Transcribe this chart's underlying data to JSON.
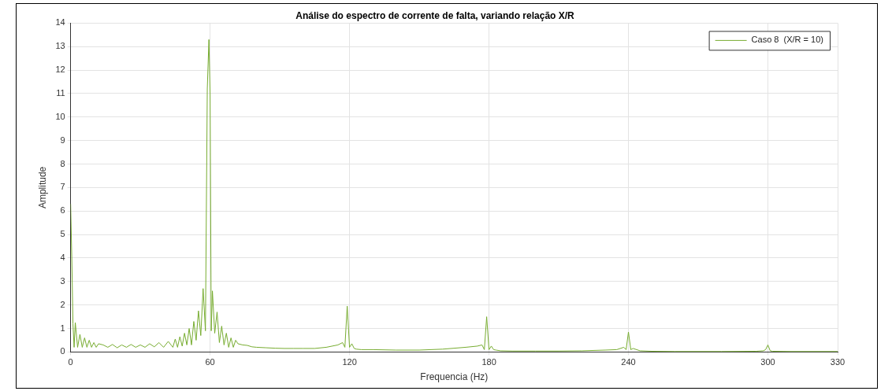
{
  "chart_data": {
    "type": "line",
    "title": "Análise do espectro de corrente de falta, variando relação X/R",
    "xlabel": "Frequencia (Hz)",
    "ylabel": "Amplitude",
    "xlim": [
      0,
      330
    ],
    "xticks": [
      0,
      60,
      120,
      180,
      240,
      300,
      330
    ],
    "ylim": [
      0,
      14
    ],
    "yticks": [
      0,
      1,
      2,
      3,
      4,
      5,
      6,
      7,
      8,
      9,
      10,
      11,
      12,
      13,
      14
    ],
    "grid": true,
    "legend": "top right",
    "marker": "none",
    "line_style": "solid",
    "series": [
      {
        "name": "Caso 8  (X/R = 10)",
        "color": "#77ac30",
        "x": [
          0,
          0.5,
          1,
          1.5,
          2,
          3,
          4,
          5,
          6,
          7,
          8,
          9,
          10,
          11,
          12,
          14,
          16,
          18,
          20,
          22,
          24,
          26,
          28,
          30,
          32,
          34,
          36,
          38,
          40,
          42,
          44,
          45,
          46,
          47,
          48,
          49,
          50,
          51,
          52,
          53,
          54,
          55,
          56,
          57,
          58,
          58.8,
          59.5,
          60,
          60.5,
          61,
          62,
          63,
          64,
          65,
          66,
          67,
          68,
          69,
          70,
          71,
          72,
          74,
          76,
          78,
          80,
          84,
          88,
          92,
          96,
          100,
          105,
          110,
          115,
          117,
          118,
          119,
          120,
          121,
          122,
          123,
          125,
          130,
          140,
          150,
          160,
          170,
          175,
          177,
          178,
          179,
          180,
          181,
          182,
          183,
          185,
          190,
          200,
          210,
          220,
          230,
          235,
          238,
          239,
          240,
          241,
          242,
          245,
          250,
          260,
          280,
          295,
          298,
          299,
          300,
          301,
          302,
          310,
          330
        ],
        "values": [
          6.3,
          4,
          1.2,
          0.2,
          1.25,
          0.2,
          0.75,
          0.2,
          0.6,
          0.2,
          0.5,
          0.2,
          0.4,
          0.2,
          0.35,
          0.3,
          0.2,
          0.32,
          0.18,
          0.3,
          0.2,
          0.32,
          0.2,
          0.3,
          0.2,
          0.35,
          0.22,
          0.4,
          0.2,
          0.45,
          0.2,
          0.55,
          0.2,
          0.65,
          0.25,
          0.8,
          0.3,
          1.0,
          0.3,
          1.3,
          0.5,
          1.75,
          0.7,
          2.7,
          0.9,
          11.2,
          13.3,
          11,
          0.9,
          2.6,
          0.8,
          1.7,
          0.4,
          1.1,
          0.3,
          0.8,
          0.2,
          0.6,
          0.2,
          0.5,
          0.35,
          0.3,
          0.28,
          0.22,
          0.2,
          0.18,
          0.16,
          0.15,
          0.15,
          0.15,
          0.15,
          0.2,
          0.3,
          0.4,
          0.2,
          1.95,
          0.2,
          0.35,
          0.15,
          0.12,
          0.1,
          0.1,
          0.08,
          0.08,
          0.12,
          0.2,
          0.25,
          0.3,
          0.1,
          1.5,
          0.1,
          0.25,
          0.1,
          0.08,
          0.05,
          0.04,
          0.04,
          0.04,
          0.05,
          0.08,
          0.1,
          0.2,
          0.1,
          0.85,
          0.1,
          0.15,
          0.05,
          0.03,
          0.02,
          0.02,
          0.03,
          0.05,
          0.1,
          0.3,
          0.05,
          0.03,
          0.02,
          0.02
        ]
      }
    ]
  }
}
